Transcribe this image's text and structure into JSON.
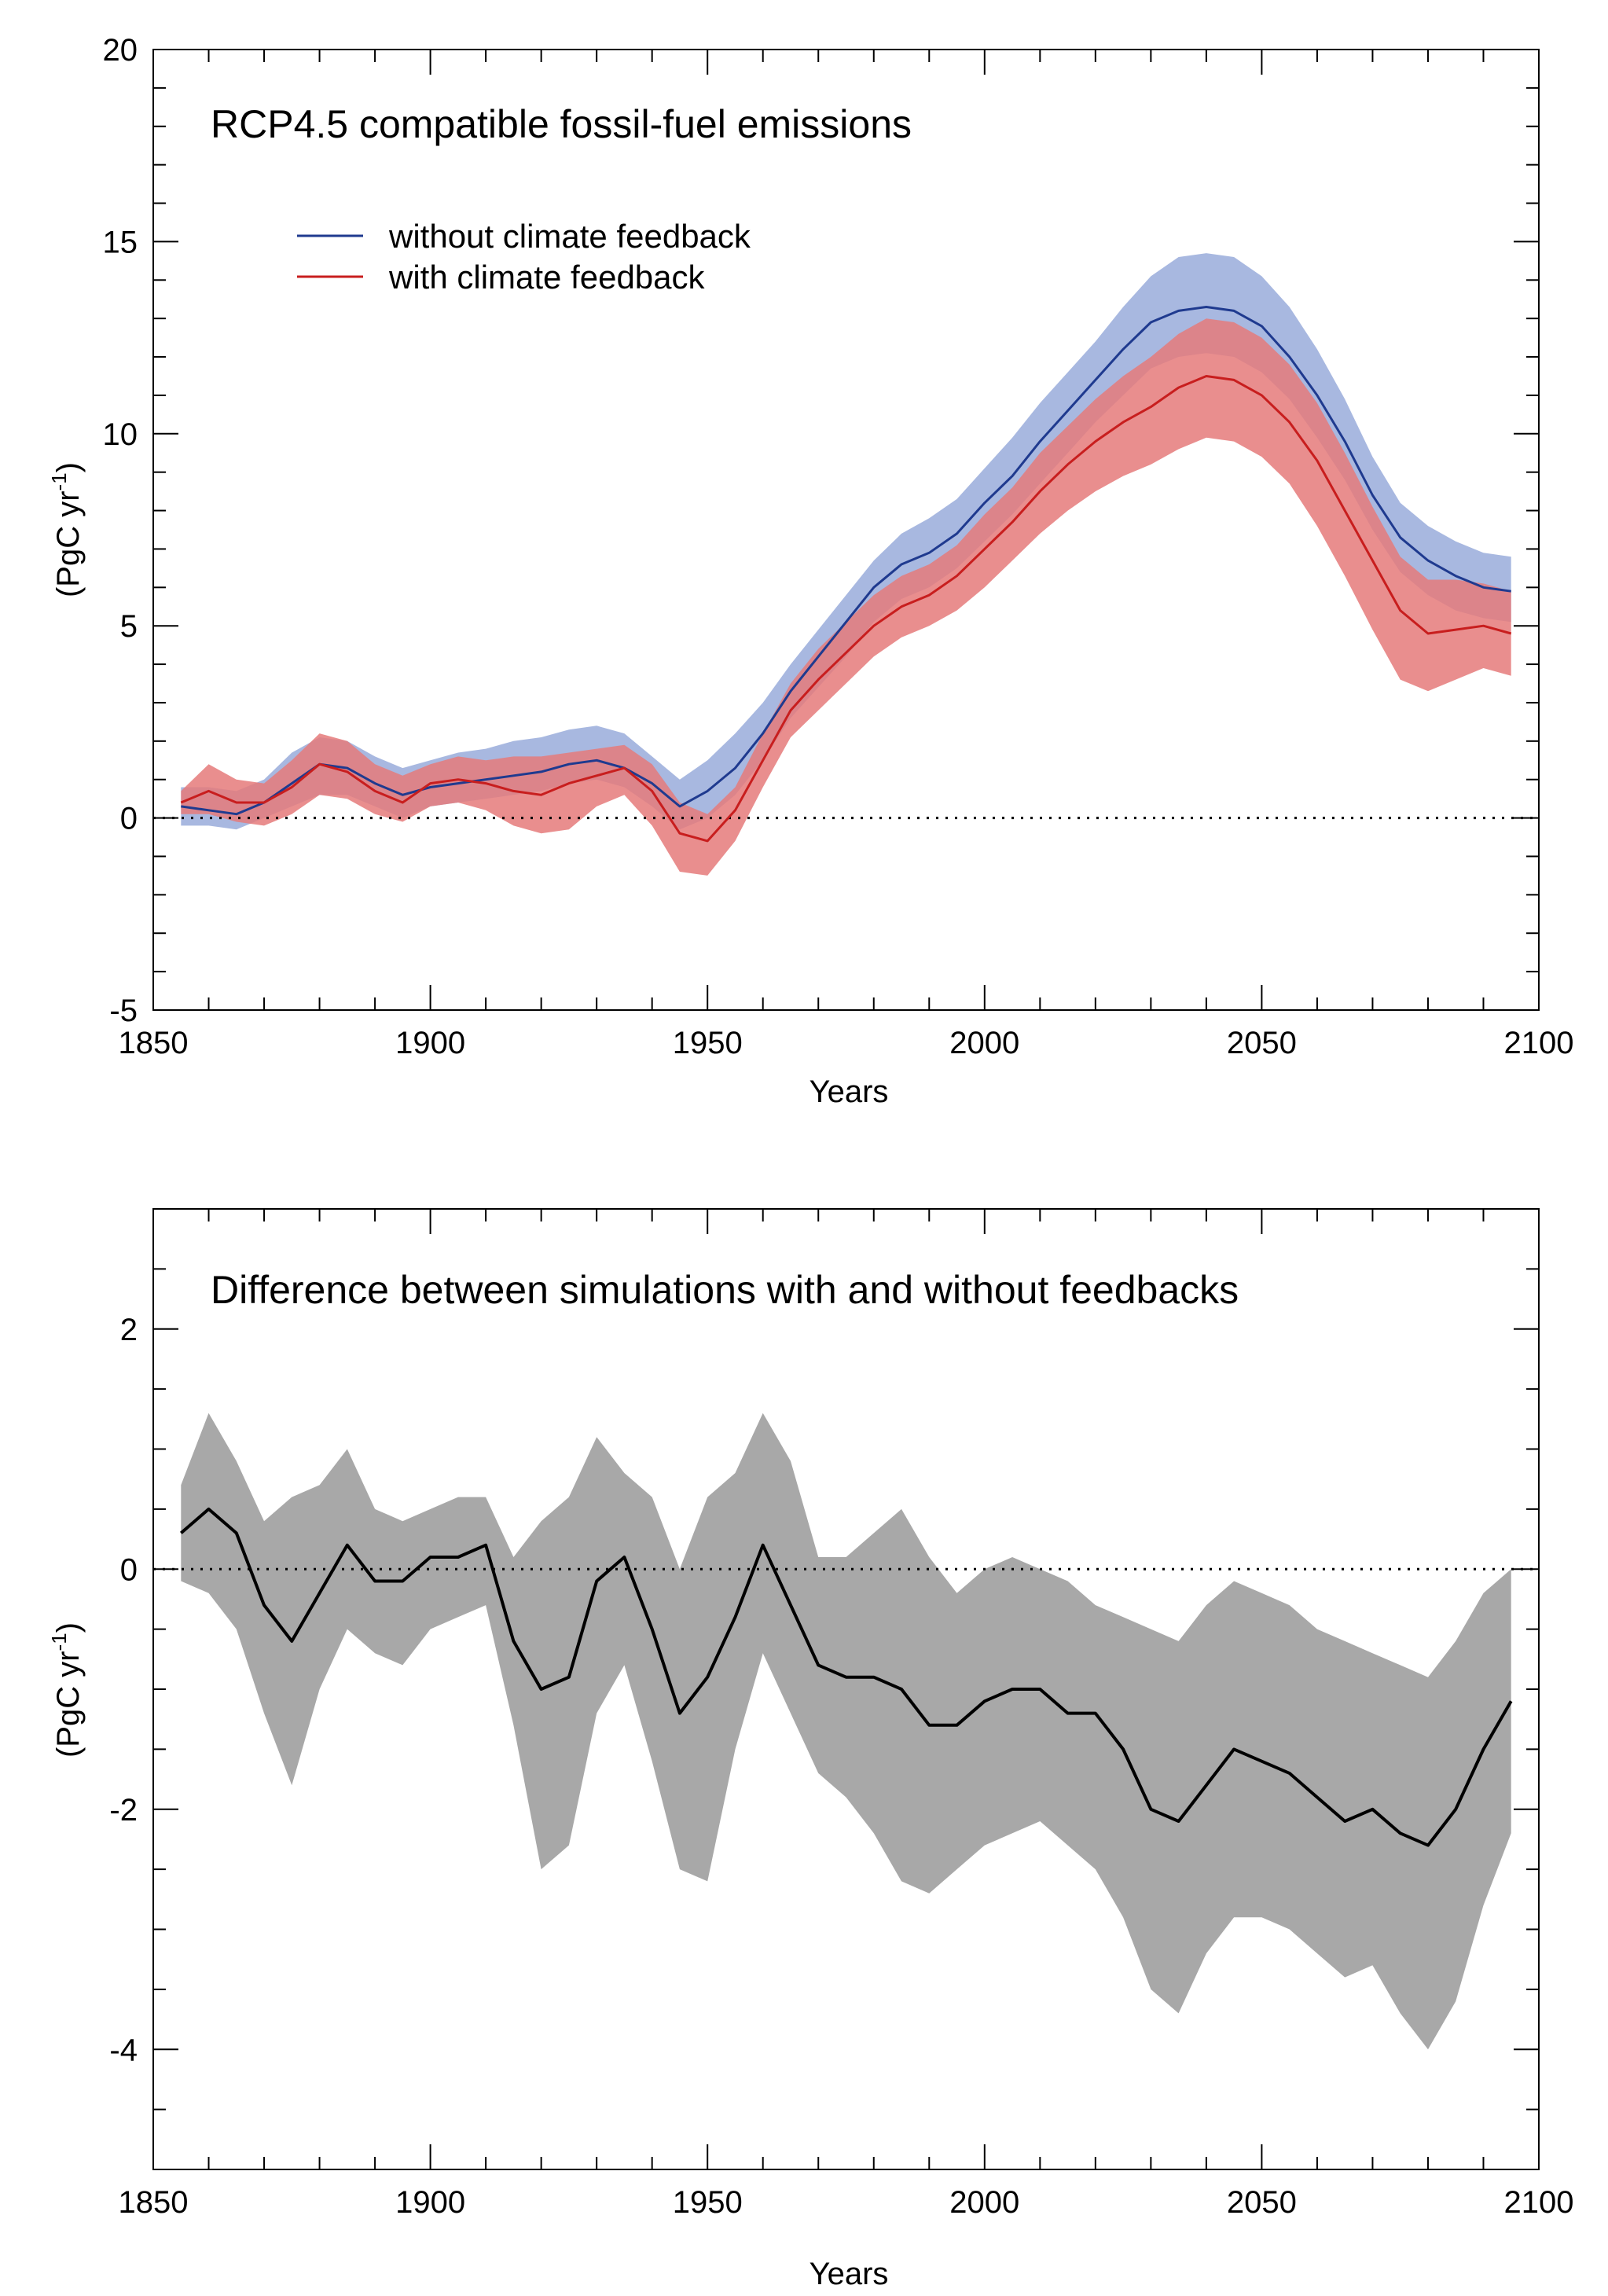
{
  "chart_data": [
    {
      "type": "line",
      "title": "RCP4.5 compatible fossil-fuel emissions",
      "xlabel": "Years",
      "ylabel_main": "(PgC yr",
      "ylabel_sup": "-1",
      "ylabel_close": ")",
      "xlim": [
        1850,
        2100
      ],
      "ylim": [
        -5,
        20
      ],
      "xticks": [
        1850,
        1900,
        1950,
        2000,
        2050,
        2100
      ],
      "xtick_labels": [
        "1850",
        "1900",
        "1950",
        "2000",
        "2050",
        "2100"
      ],
      "yticks": [
        -5,
        0,
        5,
        10,
        15,
        20
      ],
      "ytick_labels": [
        "-5",
        "0",
        "5",
        "10",
        "15",
        "20"
      ],
      "legend_position": "top-left",
      "colors": {
        "blue_line": "#1f3a8f",
        "blue_band": "#a8b8e0",
        "red_line": "#c81e1e",
        "red_band": "#e57a7a"
      },
      "x": [
        1855,
        1860,
        1865,
        1870,
        1875,
        1880,
        1885,
        1890,
        1895,
        1900,
        1905,
        1910,
        1915,
        1920,
        1925,
        1930,
        1935,
        1940,
        1945,
        1950,
        1955,
        1960,
        1965,
        1970,
        1975,
        1980,
        1985,
        1990,
        1995,
        2000,
        2005,
        2010,
        2015,
        2020,
        2025,
        2030,
        2035,
        2040,
        2045,
        2050,
        2055,
        2060,
        2065,
        2070,
        2075,
        2080,
        2085,
        2090,
        2095
      ],
      "series": [
        {
          "name": "without climate feedback",
          "values": [
            0.3,
            0.2,
            0.1,
            0.4,
            0.9,
            1.4,
            1.3,
            0.9,
            0.6,
            0.8,
            0.9,
            1.0,
            1.1,
            1.2,
            1.4,
            1.5,
            1.3,
            0.9,
            0.3,
            0.7,
            1.3,
            2.2,
            3.3,
            4.2,
            5.1,
            6.0,
            6.6,
            6.9,
            7.4,
            8.2,
            8.9,
            9.8,
            10.6,
            11.4,
            12.2,
            12.9,
            13.2,
            13.3,
            13.2,
            12.8,
            12.0,
            11.0,
            9.8,
            8.4,
            7.3,
            6.7,
            6.3,
            6.0,
            5.9
          ],
          "lower": [
            -0.2,
            -0.2,
            -0.3,
            0.0,
            0.3,
            0.6,
            0.6,
            0.3,
            0.0,
            0.3,
            0.4,
            0.5,
            0.6,
            0.7,
            0.9,
            1.0,
            0.8,
            0.3,
            -0.3,
            0.0,
            0.6,
            1.5,
            2.6,
            3.4,
            4.2,
            5.1,
            5.7,
            6.0,
            6.5,
            7.2,
            7.9,
            8.7,
            9.5,
            10.3,
            11.0,
            11.7,
            12.0,
            12.1,
            12.0,
            11.6,
            10.9,
            9.9,
            8.8,
            7.5,
            6.4,
            5.8,
            5.4,
            5.2,
            5.1
          ],
          "upper": [
            0.8,
            0.8,
            0.7,
            1.0,
            1.7,
            2.1,
            2.0,
            1.6,
            1.3,
            1.5,
            1.7,
            1.8,
            2.0,
            2.1,
            2.3,
            2.4,
            2.2,
            1.6,
            1.0,
            1.5,
            2.2,
            3.0,
            4.0,
            4.9,
            5.8,
            6.7,
            7.4,
            7.8,
            8.3,
            9.1,
            9.9,
            10.8,
            11.6,
            12.4,
            13.3,
            14.1,
            14.6,
            14.7,
            14.6,
            14.1,
            13.3,
            12.2,
            10.9,
            9.4,
            8.2,
            7.6,
            7.2,
            6.9,
            6.8
          ]
        },
        {
          "name": "with climate feedback",
          "values": [
            0.4,
            0.7,
            0.4,
            0.4,
            0.8,
            1.4,
            1.2,
            0.7,
            0.4,
            0.9,
            1.0,
            0.9,
            0.7,
            0.6,
            0.9,
            1.1,
            1.3,
            0.7,
            -0.4,
            -0.6,
            0.2,
            1.5,
            2.8,
            3.6,
            4.3,
            5.0,
            5.5,
            5.8,
            6.3,
            7.0,
            7.7,
            8.5,
            9.2,
            9.8,
            10.3,
            10.7,
            11.2,
            11.5,
            11.4,
            11.0,
            10.3,
            9.3,
            8.0,
            6.7,
            5.4,
            4.8,
            4.9,
            5.0,
            4.8
          ],
          "lower": [
            0.1,
            0.1,
            -0.1,
            -0.2,
            0.1,
            0.6,
            0.5,
            0.1,
            -0.1,
            0.3,
            0.4,
            0.2,
            -0.2,
            -0.4,
            -0.3,
            0.3,
            0.6,
            -0.2,
            -1.4,
            -1.5,
            -0.6,
            0.8,
            2.1,
            2.8,
            3.5,
            4.2,
            4.7,
            5.0,
            5.4,
            6.0,
            6.7,
            7.4,
            8.0,
            8.5,
            8.9,
            9.2,
            9.6,
            9.9,
            9.8,
            9.4,
            8.7,
            7.6,
            6.3,
            4.9,
            3.6,
            3.3,
            3.6,
            3.9,
            3.7
          ],
          "upper": [
            0.7,
            1.4,
            1.0,
            0.9,
            1.5,
            2.2,
            2.0,
            1.4,
            1.1,
            1.4,
            1.6,
            1.5,
            1.6,
            1.6,
            1.7,
            1.8,
            1.9,
            1.4,
            0.4,
            0.1,
            0.8,
            2.2,
            3.5,
            4.4,
            5.1,
            5.8,
            6.3,
            6.6,
            7.1,
            7.9,
            8.6,
            9.5,
            10.2,
            10.9,
            11.5,
            12.0,
            12.6,
            13.0,
            12.9,
            12.5,
            11.8,
            10.8,
            9.5,
            8.1,
            6.8,
            6.2,
            6.2,
            6.1,
            5.9
          ]
        }
      ]
    },
    {
      "type": "line",
      "title": "Difference between simulations with and without feedbacks",
      "xlabel": "Years",
      "ylabel_main": "(PgC yr",
      "ylabel_sup": "-1",
      "ylabel_close": ")",
      "xlim": [
        1850,
        2100
      ],
      "ylim": [
        -5,
        3
      ],
      "xticks": [
        1850,
        1900,
        1950,
        2000,
        2050,
        2100
      ],
      "xtick_labels": [
        "1850",
        "1900",
        "1950",
        "2000",
        "2050",
        "2100"
      ],
      "yticks": [
        -4,
        -2,
        0,
        2
      ],
      "ytick_labels": [
        "-4",
        "-2",
        "0",
        "2"
      ],
      "colors": {
        "line": "#000000",
        "band": "#a8a8a8"
      },
      "x": [
        1855,
        1860,
        1865,
        1870,
        1875,
        1880,
        1885,
        1890,
        1895,
        1900,
        1905,
        1910,
        1915,
        1920,
        1925,
        1930,
        1935,
        1940,
        1945,
        1950,
        1955,
        1960,
        1965,
        1970,
        1975,
        1980,
        1985,
        1990,
        1995,
        2000,
        2005,
        2010,
        2015,
        2020,
        2025,
        2030,
        2035,
        2040,
        2045,
        2050,
        2055,
        2060,
        2065,
        2070,
        2075,
        2080,
        2085,
        2090,
        2095
      ],
      "series": [
        {
          "name": "difference",
          "values": [
            0.3,
            0.5,
            0.3,
            -0.3,
            -0.6,
            -0.2,
            0.2,
            -0.1,
            -0.1,
            0.1,
            0.1,
            0.2,
            -0.6,
            -1.0,
            -0.9,
            -0.1,
            0.1,
            -0.5,
            -1.2,
            -0.9,
            -0.4,
            0.2,
            -0.3,
            -0.8,
            -0.9,
            -0.9,
            -1.0,
            -1.3,
            -1.3,
            -1.1,
            -1.0,
            -1.0,
            -1.2,
            -1.2,
            -1.5,
            -2.0,
            -2.1,
            -1.8,
            -1.5,
            -1.6,
            -1.7,
            -1.9,
            -2.1,
            -2.0,
            -2.2,
            -2.3,
            -2.0,
            -1.5,
            -1.1
          ],
          "lower": [
            -0.1,
            -0.2,
            -0.5,
            -1.2,
            -1.8,
            -1.0,
            -0.5,
            -0.7,
            -0.8,
            -0.5,
            -0.4,
            -0.3,
            -1.3,
            -2.5,
            -2.3,
            -1.2,
            -0.8,
            -1.6,
            -2.5,
            -2.6,
            -1.5,
            -0.7,
            -1.2,
            -1.7,
            -1.9,
            -2.2,
            -2.6,
            -2.7,
            -2.5,
            -2.3,
            -2.2,
            -2.1,
            -2.3,
            -2.5,
            -2.9,
            -3.5,
            -3.7,
            -3.2,
            -2.9,
            -2.9,
            -3.0,
            -3.2,
            -3.4,
            -3.3,
            -3.7,
            -4.0,
            -3.6,
            -2.8,
            -2.2
          ],
          "upper": [
            0.7,
            1.3,
            0.9,
            0.4,
            0.6,
            0.7,
            1.0,
            0.5,
            0.4,
            0.5,
            0.6,
            0.6,
            0.1,
            0.4,
            0.6,
            1.1,
            0.8,
            0.6,
            0.0,
            0.6,
            0.8,
            1.3,
            0.9,
            0.1,
            0.1,
            0.3,
            0.5,
            0.1,
            -0.2,
            0.0,
            0.1,
            0.0,
            -0.1,
            -0.3,
            -0.4,
            -0.5,
            -0.6,
            -0.3,
            -0.1,
            -0.2,
            -0.3,
            -0.5,
            -0.6,
            -0.7,
            -0.8,
            -0.9,
            -0.6,
            -0.2,
            0.0
          ]
        }
      ]
    }
  ]
}
